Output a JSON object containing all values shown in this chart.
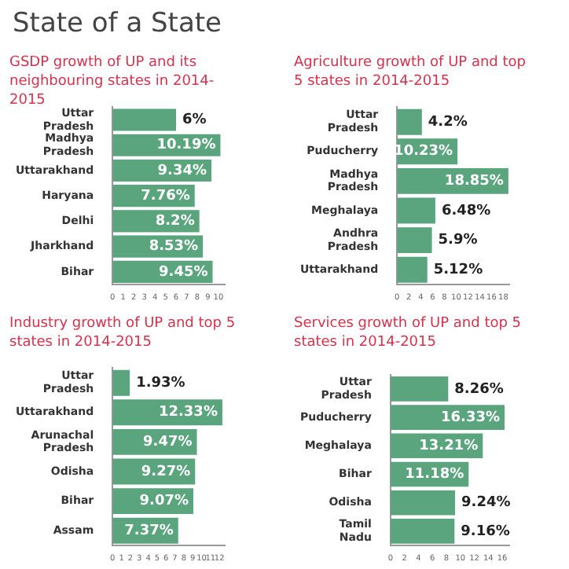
{
  "chart_data": [
    {
      "type": "bar",
      "orientation": "horizontal",
      "title": "GSDP growth of UP and its neighbouring states in 2014-2015",
      "annotations": [
        "State of a State"
      ],
      "categories": [
        "Uttar Pradesh",
        "Madhya Pradesh",
        "Uttarakhand",
        "Haryana",
        "Delhi",
        "Jharkhand",
        "Bihar"
      ],
      "values": [
        6,
        10.19,
        9.34,
        7.76,
        8.2,
        8.53,
        9.45
      ],
      "value_labels": [
        "6%",
        "10.19%",
        "9.34%",
        "7.76%",
        "8.2%",
        "8.53%",
        "9.45%"
      ],
      "color": "#5ba57e",
      "xlim": [
        0,
        10.6
      ],
      "xticks": [
        0,
        1,
        2,
        3,
        4,
        5,
        6,
        7,
        8,
        9,
        10
      ]
    },
    {
      "type": "bar",
      "orientation": "horizontal",
      "title": "Agriculture growth of UP and top 5 states in 2014-2015",
      "categories": [
        "Uttar Pradesh",
        "Puducherry",
        "Madhya Pradesh",
        "Meghalaya",
        "Andhra Pradesh",
        "Uttarakhand"
      ],
      "values": [
        4.2,
        10.23,
        18.85,
        6.48,
        5.9,
        5.12
      ],
      "value_labels": [
        "4.2%",
        "10.23%",
        "18.85%",
        "6.48%",
        "5.9%",
        "5.12%"
      ],
      "color": "#5ba57e",
      "xlim": [
        0,
        19
      ],
      "xticks": [
        0,
        2,
        4,
        6,
        8,
        10,
        12,
        14,
        16,
        18
      ]
    },
    {
      "type": "bar",
      "orientation": "horizontal",
      "title": "Industry growth of UP and top 5 states in 2014-2015",
      "categories": [
        "Uttar Pradesh",
        "Uttarakhand",
        "Arunachal Pradesh",
        "Odisha",
        "Bihar",
        "Assam"
      ],
      "values": [
        1.93,
        12.33,
        9.47,
        9.27,
        9.07,
        7.37
      ],
      "value_labels": [
        "1.93%",
        "12.33%",
        "9.47%",
        "9.27%",
        "9.07%",
        "7.37%"
      ],
      "color": "#5ba57e",
      "xlim": [
        0,
        12.6
      ],
      "xticks": [
        0,
        1,
        2,
        3,
        4,
        5,
        6,
        7,
        8,
        9,
        10,
        11,
        12
      ]
    },
    {
      "type": "bar",
      "orientation": "horizontal",
      "title": "Services growth of UP and top 5 states in 2014-2015",
      "categories": [
        "Uttar Pradesh",
        "Puducherry",
        "Meghalaya",
        "Bihar",
        "Odisha",
        "Tamil Nadu"
      ],
      "values": [
        8.26,
        16.33,
        13.21,
        11.18,
        9.24,
        9.16
      ],
      "value_labels": [
        "8.26%",
        "16.33%",
        "13.21%",
        "11.18%",
        "9.24%",
        "9.16%"
      ],
      "color": "#5ba57e",
      "xlim": [
        0,
        17
      ],
      "xticks": [
        0,
        2,
        4,
        6,
        8,
        10,
        12,
        14,
        16
      ]
    }
  ]
}
